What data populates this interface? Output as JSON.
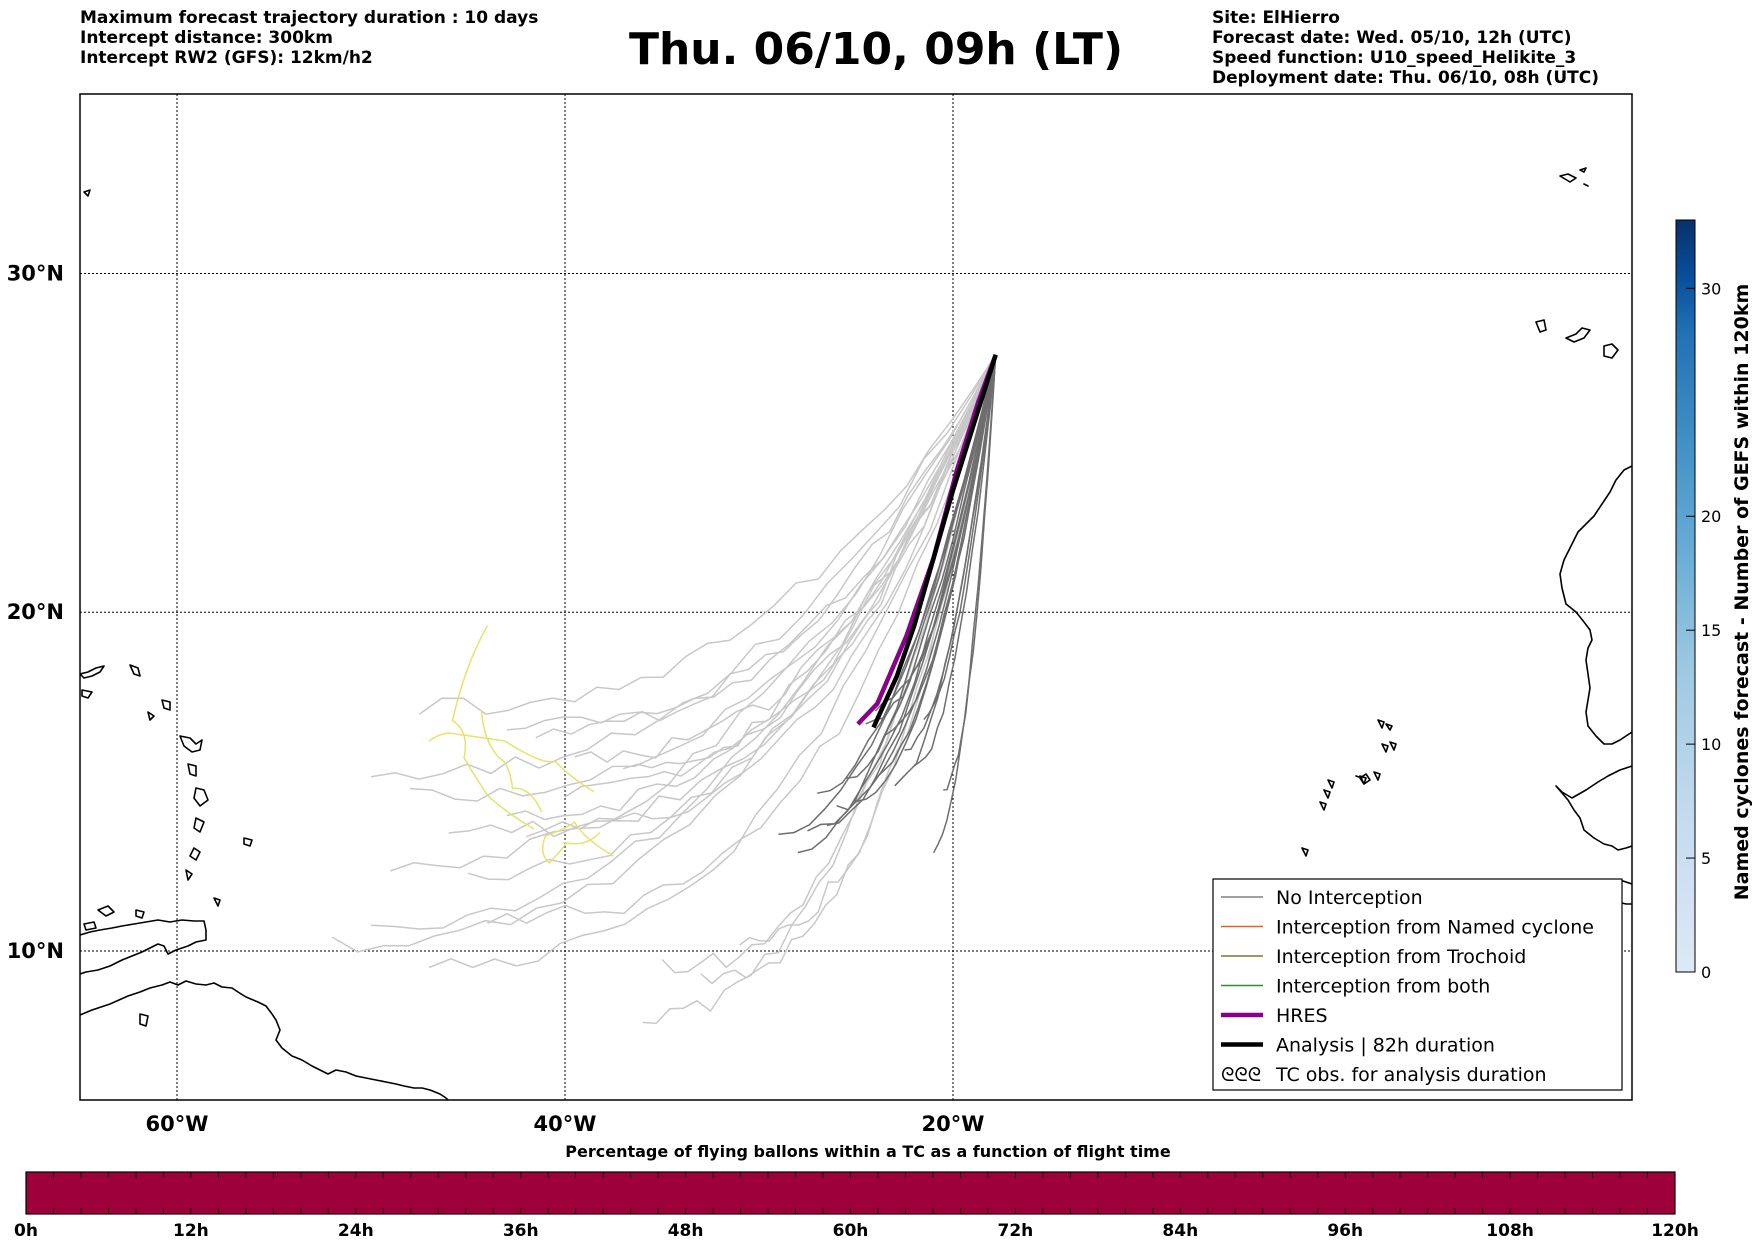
{
  "header": {
    "left_lines": [
      "Maximum forecast trajectory duration : 10 days",
      "Intercept distance: 300km",
      "Intercept RW2 (GFS):  12km/h2"
    ],
    "title": "Thu. 06/10, 09h (LT)",
    "right_lines": [
      "Site: ElHierro",
      "Forecast date: Wed. 05/10, 12h (UTC)",
      "Speed function: U10_speed_Helikite_3",
      "Deployment date: Thu. 06/10, 08h (UTC)"
    ]
  },
  "map": {
    "lon_range": [
      -65,
      15
    ],
    "lat_range": [
      5.6,
      35.3
    ],
    "lat_grid": [
      10,
      20,
      30
    ],
    "lon_grid": [
      -60,
      -40,
      -20
    ],
    "lat_labels": [
      "10°N",
      "20°N",
      "30°N"
    ],
    "lon_labels": [
      "60°W",
      "40°W",
      "20°W"
    ],
    "release_site": "ElHierro",
    "release_point": [
      -17.8,
      27.6
    ]
  },
  "legend": {
    "placement": "lower-right",
    "items": [
      {
        "key": "no_interception",
        "label": "No Interception",
        "color": "#808080",
        "style": "thin"
      },
      {
        "key": "named_cyclone",
        "label": "Interception from Named cyclone",
        "color": "#e8602c",
        "style": "thin"
      },
      {
        "key": "trochoid",
        "label": "Interception from Trochoid",
        "color": "#7a7a2a",
        "style": "thin"
      },
      {
        "key": "both",
        "label": "Interception from both",
        "color": "#2e8b2e",
        "style": "thin"
      },
      {
        "key": "hres",
        "label": "HRES",
        "color": "#8b008b",
        "style": "thick"
      },
      {
        "key": "analysis",
        "label": "Analysis | 82h duration",
        "color": "#000000",
        "style": "thick"
      },
      {
        "key": "tc_obs",
        "label": "TC obs. for analysis duration",
        "color": "#000000",
        "style": "symbol",
        "symbol": "ᘓᘓᘓ"
      }
    ]
  },
  "colorbar_right": {
    "label": "Named cyclones forecast - Number of GEFS within 120km",
    "ticks": [
      0,
      5,
      10,
      15,
      20,
      30
    ],
    "range": [
      0,
      33
    ],
    "colors": [
      "#dde9f6",
      "#c6dbef",
      "#9ecae1",
      "#6baed6",
      "#4292c6",
      "#2171b5",
      "#08519c",
      "#08306b"
    ]
  },
  "colorbar_bottom": {
    "label": "Percentage of flying ballons within a TC as a function of flight time",
    "tick_labels": [
      "0h",
      "12h",
      "24h",
      "36h",
      "48h",
      "60h",
      "72h",
      "84h",
      "96h",
      "108h",
      "120h"
    ],
    "fill_color": "#9e003a",
    "segments": 60
  },
  "tracks": {
    "light_gray_color": "#c8c8c8",
    "dark_gray_color": "#6e6e6e",
    "yellow_color": "#e6e36b",
    "hres_color": "#8b008b",
    "analysis_color": "#000000"
  }
}
